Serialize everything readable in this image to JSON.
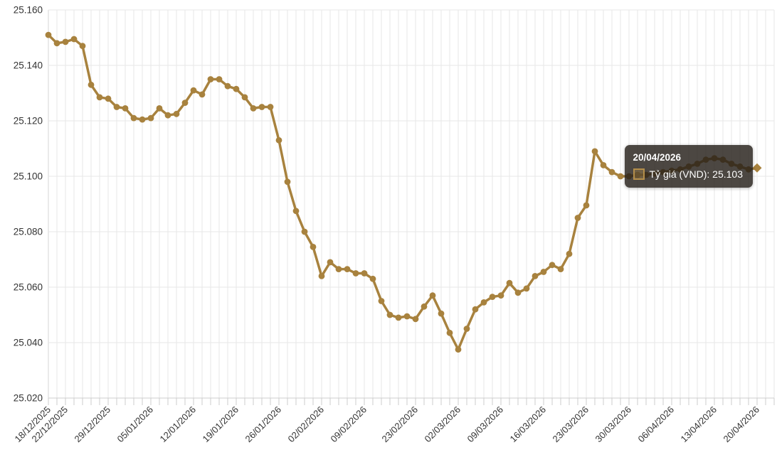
{
  "chart_data": {
    "type": "line",
    "title": "",
    "series": [
      {
        "name": "Tỷ giá (VND)",
        "color": "#a8823e",
        "values": [
          25.151,
          25.148,
          25.1485,
          25.1495,
          25.147,
          25.133,
          25.1285,
          25.128,
          25.125,
          25.1245,
          25.121,
          25.1205,
          25.121,
          25.1245,
          25.122,
          25.1225,
          25.1265,
          25.131,
          25.1295,
          25.135,
          25.135,
          25.1325,
          25.1315,
          25.1285,
          25.1245,
          25.125,
          25.125,
          25.113,
          25.098,
          25.0875,
          25.08,
          25.0745,
          25.064,
          25.069,
          25.0665,
          25.0665,
          25.065,
          25.065,
          25.063,
          25.055,
          25.05,
          25.049,
          25.0495,
          25.0485,
          25.053,
          25.057,
          25.0505,
          25.0435,
          25.0375,
          25.045,
          25.052,
          25.0545,
          25.0565,
          25.057,
          25.0615,
          25.058,
          25.0595,
          25.064,
          25.0655,
          25.068,
          25.0665,
          25.072,
          25.085,
          25.0895,
          25.109,
          25.104,
          25.1015,
          25.1,
          25.1,
          25.1005,
          25.1005,
          25.101,
          25.1015,
          25.102,
          25.1025,
          25.1035,
          25.1045,
          25.106,
          25.1065,
          25.106,
          25.1045,
          25.1035,
          25.1025,
          25.103
        ]
      }
    ],
    "x_tick_labels": [
      "18/12/2025",
      "22/12/2025",
      "29/12/2025",
      "05/01/2026",
      "12/01/2026",
      "19/01/2026",
      "26/01/2026",
      "02/02/2026",
      "09/02/2026",
      "23/02/2026",
      "02/03/2026",
      "09/03/2026",
      "16/03/2026",
      "23/03/2026",
      "30/03/2026",
      "06/04/2026",
      "13/04/2026",
      "20/04/2026"
    ],
    "x_tick_indices": [
      0,
      2,
      7,
      12,
      17,
      22,
      27,
      32,
      37,
      43,
      48,
      53,
      58,
      63,
      68,
      73,
      78,
      83
    ],
    "yaxis": {
      "min": 25.02,
      "max": 25.16,
      "step": 0.02,
      "tick_labels": [
        "25.020",
        "25.040",
        "25.060",
        "25.080",
        "25.100",
        "25.120",
        "25.140",
        "25.160"
      ]
    },
    "grid": true,
    "legend_position": "none",
    "highlighted_point_index": 83,
    "highlighted_point_value": "25.103"
  },
  "tooltip": {
    "date": "20/04/2026",
    "series_name": "Tỷ giá (VND)",
    "value": "25.103",
    "value_label": "Tỷ giá (VND): 25.103"
  },
  "colors": {
    "series": "#a8823e",
    "grid": "#e7e7e7",
    "axis": "#cccccc",
    "axis_left": "#d4d4d4",
    "label": "#333333",
    "tooltip_bg": "rgba(37,31,24,0.82)",
    "tooltip_text": "#ffffff"
  }
}
